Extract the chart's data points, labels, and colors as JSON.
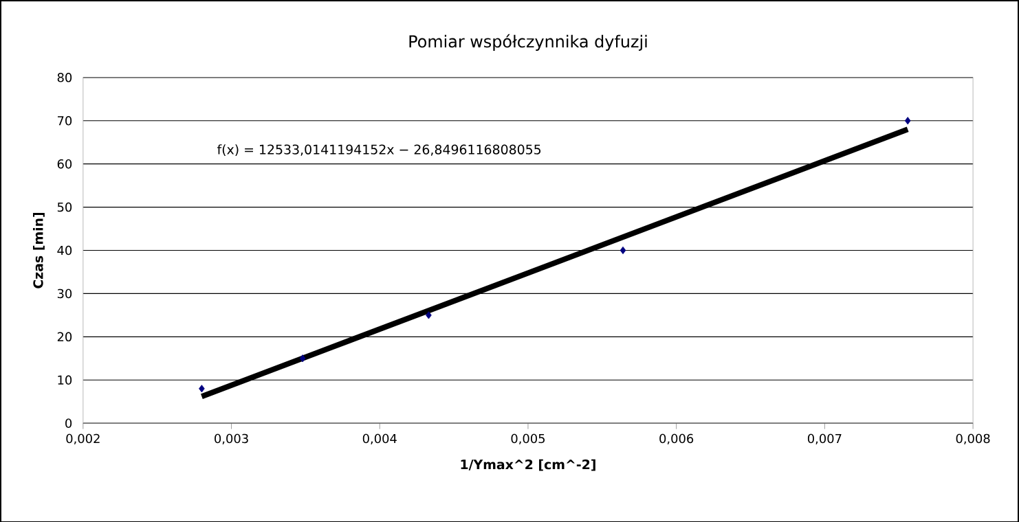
{
  "chart_data": {
    "type": "scatter",
    "title": "Pomiar współczynnika dyfuzji",
    "xlabel": "1/Ymax^2 [cm^-2]",
    "ylabel": "Czas [min]",
    "annotations": [
      "f(x) = 12533,0141194152x − 26,8496116808055"
    ],
    "series": [
      {
        "color": "#000080",
        "marker": "diamond",
        "x": [
          0.0028,
          0.00348,
          0.00433,
          0.00564,
          0.00756
        ],
        "values": [
          8,
          15,
          25,
          40,
          70
        ]
      },
      {
        "type": "line",
        "color": "#000000",
        "line_style": "solid",
        "x": [
          0.0028,
          0.00756
        ],
        "values": [
          6.2,
          68
        ]
      }
    ],
    "xlim": [
      0.002,
      0.008
    ],
    "xticks": [
      {
        "value": 0.002,
        "label": "0,002"
      },
      {
        "value": 0.003,
        "label": "0,003"
      },
      {
        "value": 0.004,
        "label": "0,004"
      },
      {
        "value": 0.005,
        "label": "0,005"
      },
      {
        "value": 0.006,
        "label": "0,006"
      },
      {
        "value": 0.007,
        "label": "0,007"
      },
      {
        "value": 0.008,
        "label": "0,008"
      }
    ],
    "ylim": [
      0,
      80
    ],
    "yticks": [
      0,
      10,
      20,
      30,
      40,
      50,
      60,
      70,
      80
    ],
    "grid": "y"
  }
}
